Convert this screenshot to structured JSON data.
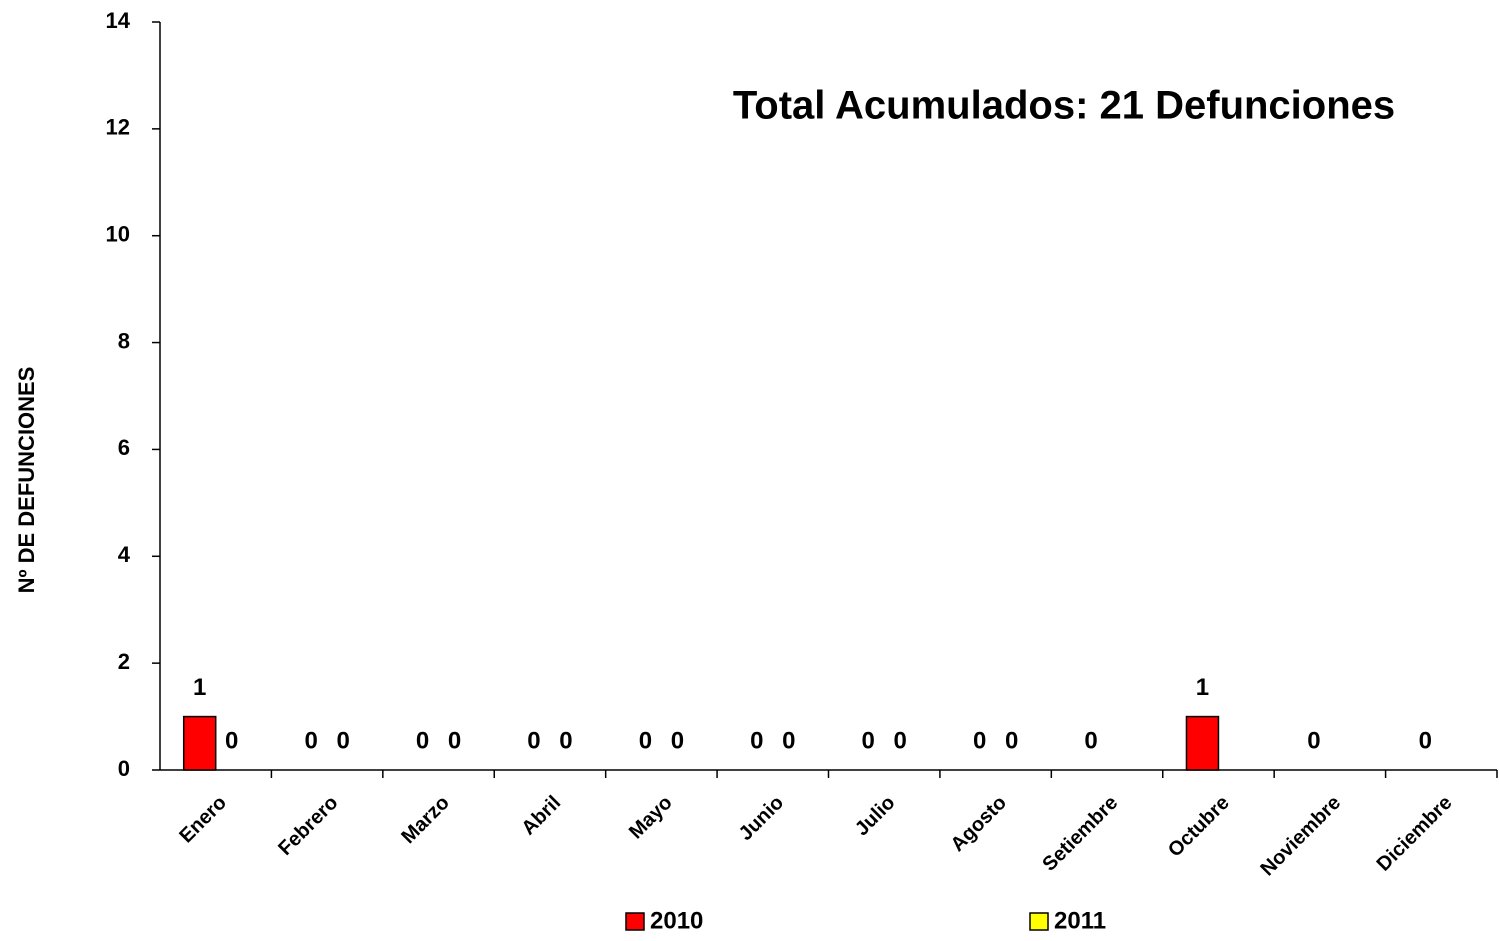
{
  "chart_data": {
    "type": "bar",
    "annotation": "Total Acumulados: 21 Defunciones",
    "y_label": "Nº DE DEFUNCIONES",
    "categories": [
      "Enero",
      "Febrero",
      "Marzo",
      "Abril",
      "Mayo",
      "Junio",
      "Julio",
      "Agosto",
      "Setiembre",
      "Octubre",
      "Noviembre",
      "Diciembre"
    ],
    "series": [
      {
        "name": "2010",
        "color": "#ff0000",
        "values": [
          1,
          0,
          0,
          0,
          0,
          0,
          0,
          0,
          0,
          1,
          0,
          0
        ]
      },
      {
        "name": "2011",
        "color": "#ffff00",
        "values": [
          0,
          0,
          0,
          0,
          0,
          0,
          0,
          0,
          null,
          null,
          null,
          null
        ]
      }
    ],
    "ylim": [
      0,
      14
    ],
    "yticks": [
      0,
      2,
      4,
      6,
      8,
      10,
      12,
      14
    ],
    "grid": false,
    "legend": "bottom"
  }
}
